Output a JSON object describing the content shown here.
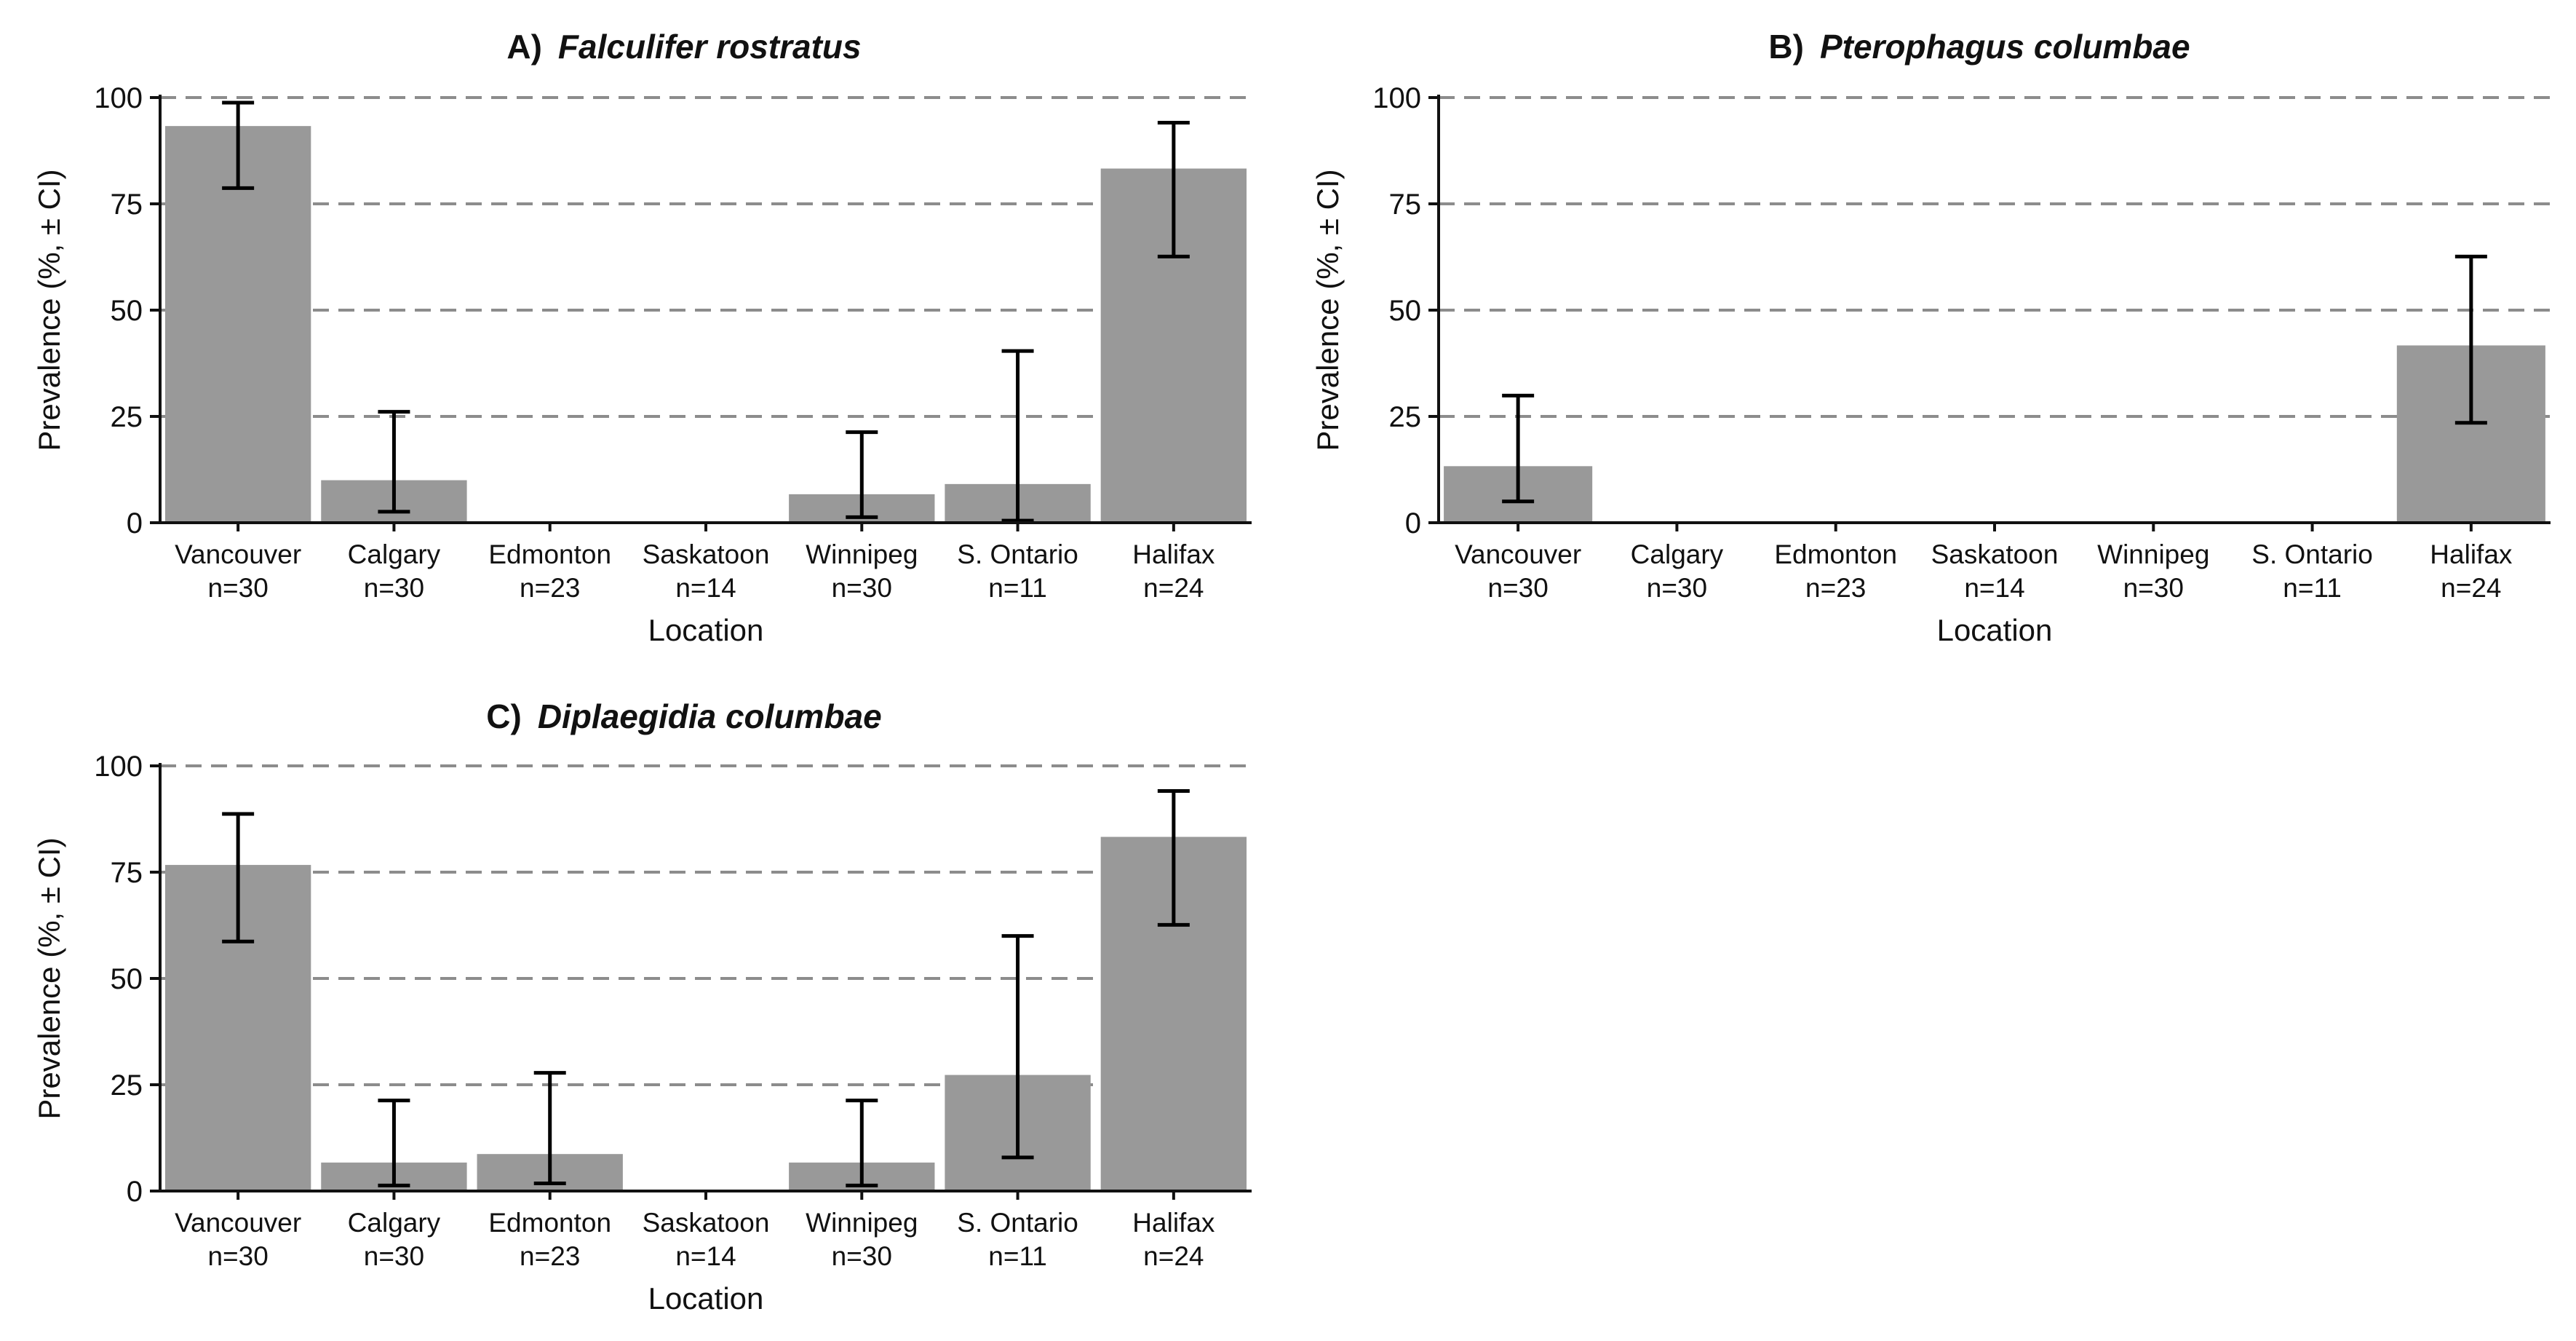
{
  "colors": {
    "bar": "#999999",
    "axis": "#111111",
    "grid": "#8c8c8c",
    "errorbar": "#000000",
    "background": "#ffffff"
  },
  "chart_data": [
    {
      "id": "A",
      "type": "bar",
      "title_letter": "A)",
      "title_species": "Falculifer rostratus",
      "xlabel": "Location",
      "ylabel": "Prevalence (%, ± CI)",
      "ylim": [
        0,
        100
      ],
      "yticks": [
        "0",
        "25",
        "50",
        "75",
        "100"
      ],
      "grid": "horizontal dashed",
      "categories": [
        "Vancouver",
        "Calgary",
        "Edmonton",
        "Saskatoon",
        "Winnipeg",
        "S. Ontario",
        "Halifax"
      ],
      "sample_sizes": [
        "n=30",
        "n=30",
        "n=23",
        "n=14",
        "n=30",
        "n=11",
        "n=24"
      ],
      "values": [
        93.3,
        10.0,
        0,
        0,
        6.7,
        9.1,
        83.3
      ],
      "ci_low": [
        78.7,
        2.6,
        null,
        null,
        1.3,
        0.5,
        62.6
      ],
      "ci_high": [
        98.8,
        26.1,
        null,
        null,
        21.3,
        40.4,
        94.1
      ]
    },
    {
      "id": "B",
      "type": "bar",
      "title_letter": "B)",
      "title_species": "Pterophagus columbae",
      "xlabel": "Location",
      "ylabel": "Prevalence (%, ± CI)",
      "ylim": [
        0,
        100
      ],
      "yticks": [
        "0",
        "25",
        "50",
        "75",
        "100"
      ],
      "grid": "horizontal dashed",
      "categories": [
        "Vancouver",
        "Calgary",
        "Edmonton",
        "Saskatoon",
        "Winnipeg",
        "S. Ontario",
        "Halifax"
      ],
      "sample_sizes": [
        "n=30",
        "n=30",
        "n=23",
        "n=14",
        "n=30",
        "n=11",
        "n=24"
      ],
      "values": [
        13.3,
        0,
        0,
        0,
        0,
        0,
        41.7
      ],
      "ci_low": [
        5.0,
        null,
        null,
        null,
        null,
        null,
        23.5
      ],
      "ci_high": [
        29.9,
        null,
        null,
        null,
        null,
        null,
        62.6
      ]
    },
    {
      "id": "C",
      "type": "bar",
      "title_letter": "C)",
      "title_species": "Diplaegidia columbae",
      "xlabel": "Location",
      "ylabel": "Prevalence (%, ± CI)",
      "ylim": [
        0,
        100
      ],
      "yticks": [
        "0",
        "25",
        "50",
        "75",
        "100"
      ],
      "grid": "horizontal dashed",
      "categories": [
        "Vancouver",
        "Calgary",
        "Edmonton",
        "Saskatoon",
        "Winnipeg",
        "S. Ontario",
        "Halifax"
      ],
      "sample_sizes": [
        "n=30",
        "n=30",
        "n=23",
        "n=14",
        "n=30",
        "n=11",
        "n=24"
      ],
      "values": [
        76.7,
        6.7,
        8.7,
        0,
        6.7,
        27.3,
        83.3
      ],
      "ci_low": [
        58.7,
        1.3,
        1.8,
        null,
        1.3,
        7.9,
        62.6
      ],
      "ci_high": [
        88.7,
        21.3,
        27.8,
        null,
        21.3,
        60.0,
        94.1
      ]
    }
  ]
}
